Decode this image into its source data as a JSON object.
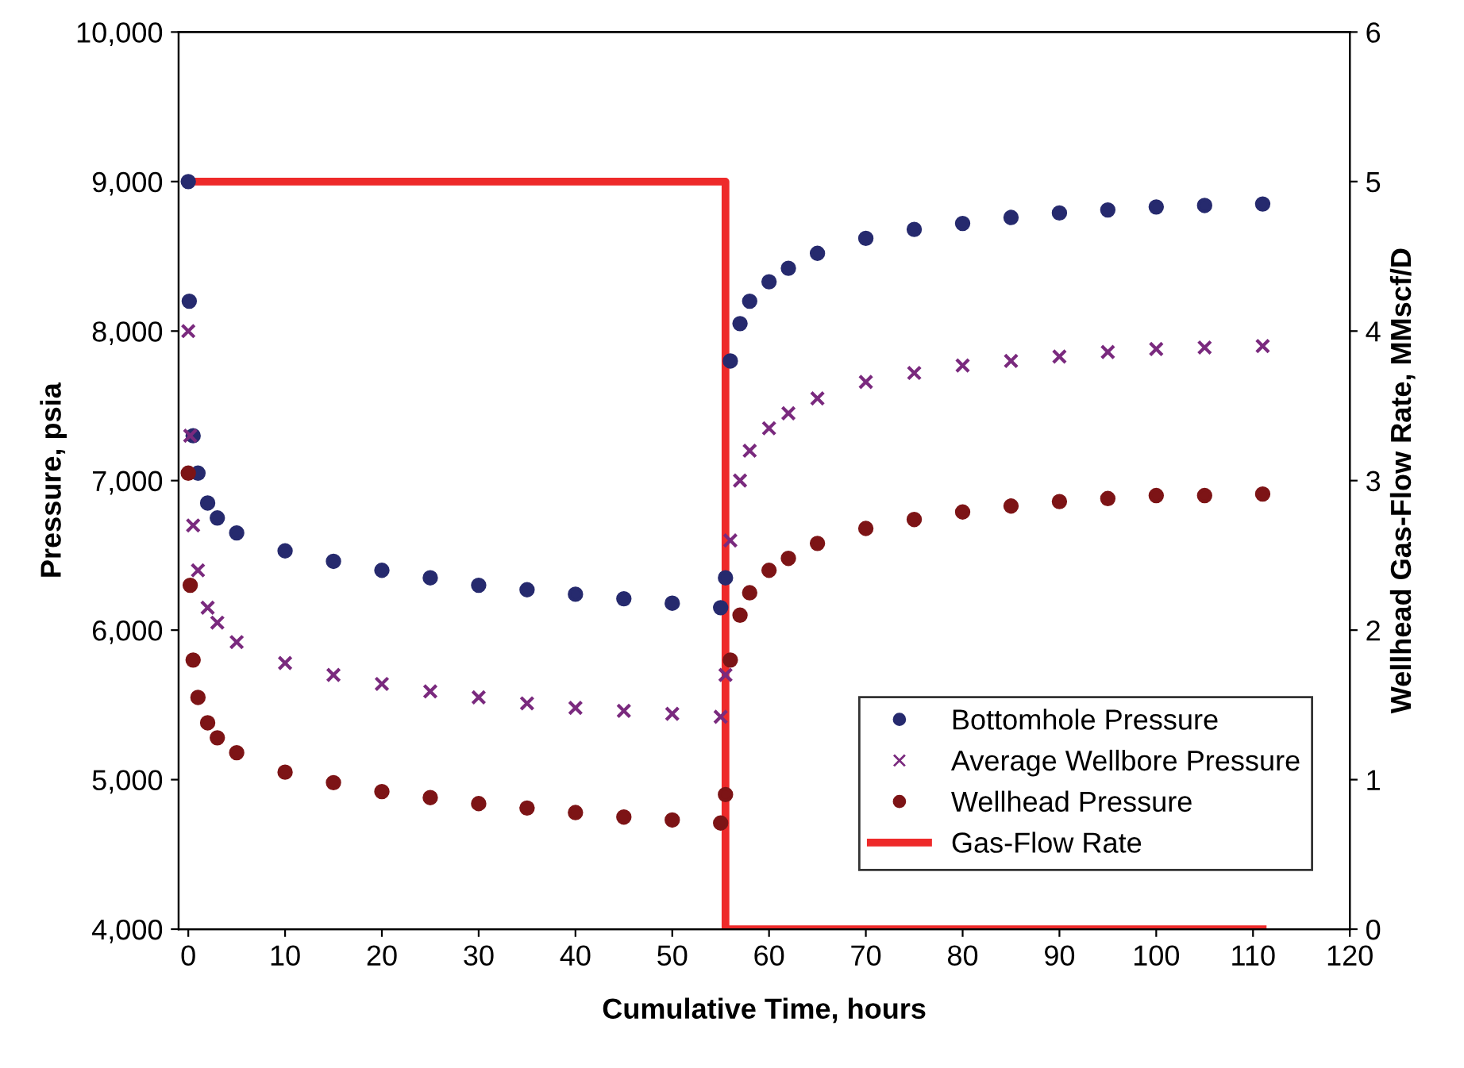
{
  "chart_data": {
    "type": "scatter",
    "xlabel": "Cumulative Time, hours",
    "ylabel": "Pressure, psia",
    "y2label": "Wellhead Gas-Flow Rate, MMscf/D",
    "xlim": [
      -1,
      120
    ],
    "xticks": [
      0,
      10,
      20,
      30,
      40,
      50,
      60,
      70,
      80,
      90,
      100,
      110,
      120
    ],
    "ylim": [
      4000,
      10000
    ],
    "yticks": [
      {
        "value": 4000,
        "label": "4,000"
      },
      {
        "value": 5000,
        "label": "5,000"
      },
      {
        "value": 6000,
        "label": "6,000"
      },
      {
        "value": 7000,
        "label": "7,000"
      },
      {
        "value": 8000,
        "label": "8,000"
      },
      {
        "value": 9000,
        "label": "9,000"
      },
      {
        "value": 10000,
        "label": "10,000"
      }
    ],
    "y2lim": [
      0,
      6
    ],
    "y2ticks": [
      0,
      1,
      2,
      3,
      4,
      5,
      6
    ],
    "grid": false,
    "legend": "bottom right",
    "series": [
      {
        "name": "Bottomhole Pressure",
        "marker": "circle",
        "color": "#262a6e",
        "x": [
          0,
          0.1,
          0.5,
          1,
          2,
          3,
          5,
          10,
          15,
          20,
          25,
          30,
          35,
          40,
          45,
          50,
          55,
          55.5,
          56,
          57,
          58,
          60,
          62,
          65,
          70,
          75,
          80,
          85,
          90,
          95,
          100,
          105,
          111
        ],
        "values": [
          9000,
          8200,
          7300,
          7050,
          6850,
          6750,
          6650,
          6530,
          6460,
          6400,
          6350,
          6300,
          6270,
          6240,
          6210,
          6180,
          6150,
          6350,
          7800,
          8050,
          8200,
          8330,
          8420,
          8520,
          8620,
          8680,
          8720,
          8760,
          8790,
          8810,
          8830,
          8840,
          8850
        ]
      },
      {
        "name": "Average Wellbore Pressure",
        "marker": "cross",
        "color": "#7a2a7e",
        "x": [
          0,
          0.2,
          0.5,
          1,
          2,
          3,
          5,
          10,
          15,
          20,
          25,
          30,
          35,
          40,
          45,
          50,
          55,
          55.5,
          56,
          57,
          58,
          60,
          62,
          65,
          70,
          75,
          80,
          85,
          90,
          95,
          100,
          105,
          111
        ],
        "values": [
          8000,
          7300,
          6700,
          6400,
          6150,
          6050,
          5920,
          5780,
          5700,
          5640,
          5590,
          5550,
          5510,
          5480,
          5460,
          5440,
          5420,
          5700,
          6600,
          7000,
          7200,
          7350,
          7450,
          7550,
          7660,
          7720,
          7770,
          7800,
          7830,
          7860,
          7880,
          7890,
          7900
        ]
      },
      {
        "name": "Wellhead Pressure",
        "marker": "circle",
        "color": "#7d1416",
        "x": [
          0,
          0.2,
          0.5,
          1,
          2,
          3,
          5,
          10,
          15,
          20,
          25,
          30,
          35,
          40,
          45,
          50,
          55,
          55.5,
          56,
          57,
          58,
          60,
          62,
          65,
          70,
          75,
          80,
          85,
          90,
          95,
          100,
          105,
          111
        ],
        "values": [
          7050,
          6300,
          5800,
          5550,
          5380,
          5280,
          5180,
          5050,
          4980,
          4920,
          4880,
          4840,
          4810,
          4780,
          4750,
          4730,
          4710,
          4900,
          5800,
          6100,
          6250,
          6400,
          6480,
          6580,
          6680,
          6740,
          6790,
          6830,
          6860,
          6880,
          6900,
          6900,
          6910
        ]
      },
      {
        "name": "Gas-Flow Rate",
        "type": "line",
        "axis": "y2",
        "marker": "none",
        "line_style": "solid",
        "color": "#ee2a2a",
        "x": [
          0,
          55.5,
          55.5,
          111
        ],
        "values": [
          5,
          5,
          0,
          0
        ]
      }
    ]
  }
}
